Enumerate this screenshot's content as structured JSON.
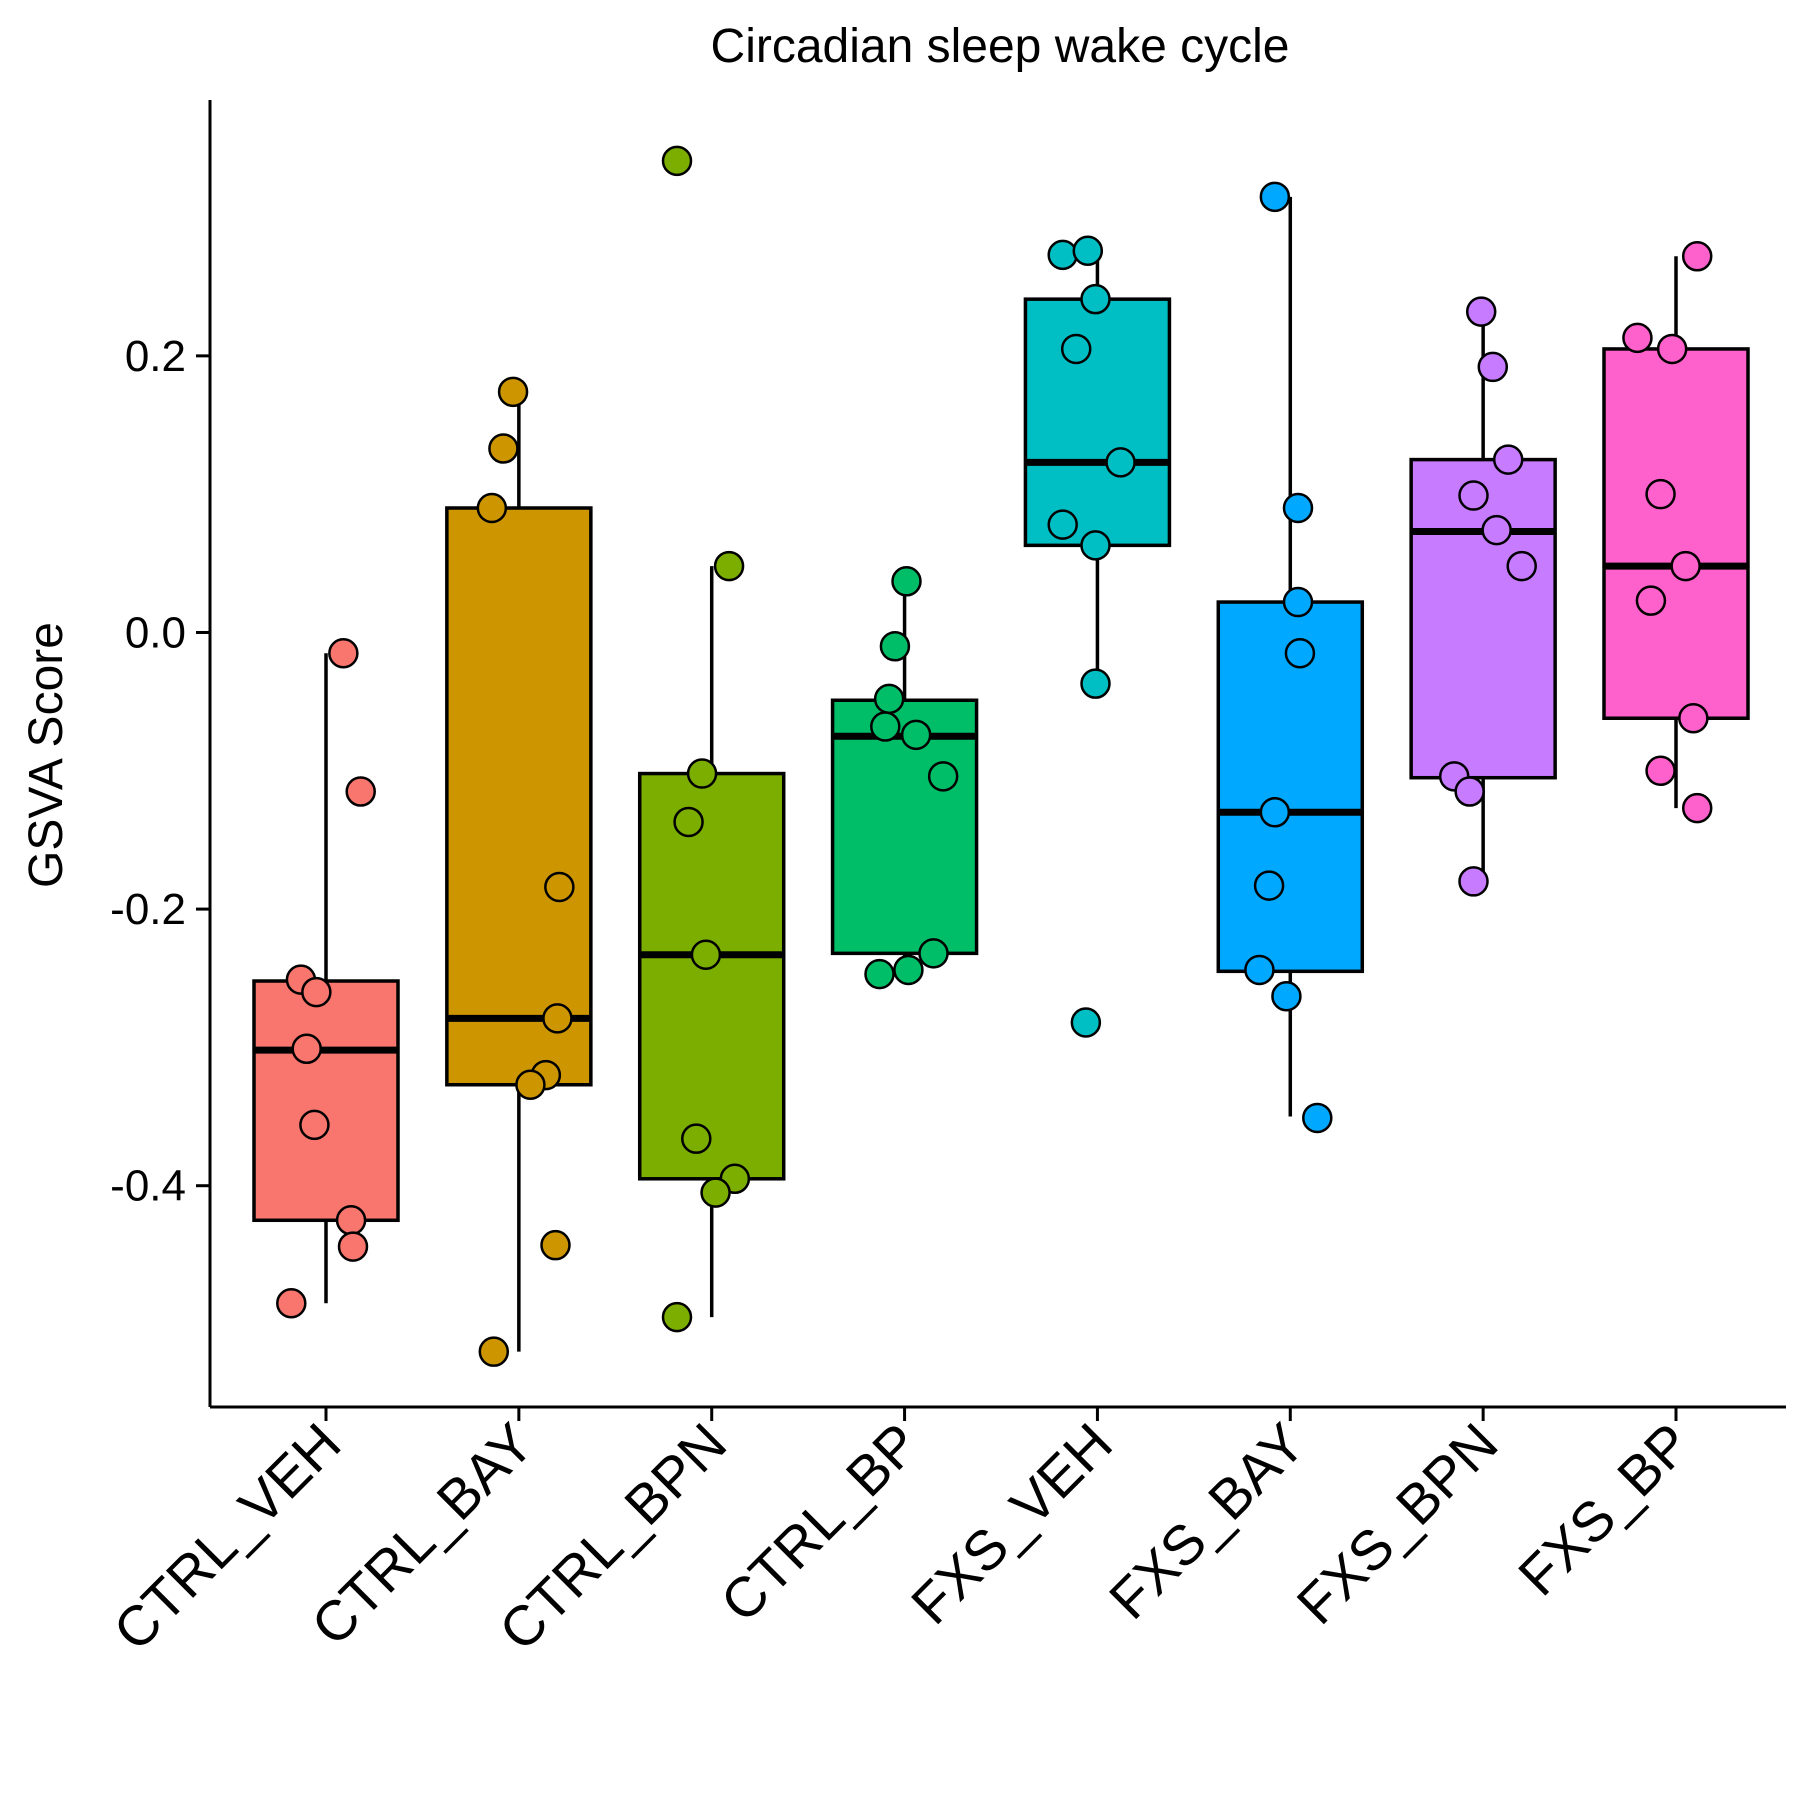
{
  "chart_data": {
    "type": "box",
    "title": "Circadian sleep wake cycle",
    "xlabel": "",
    "ylabel": "GSVA Score",
    "ylim": [
      -0.56,
      0.385
    ],
    "yticks": [
      -0.4,
      -0.2,
      0.0,
      0.2
    ],
    "ytick_labels": [
      "-0.4",
      "-0.2",
      "0.0",
      "0.2"
    ],
    "legend": "none",
    "grid": false,
    "categories": [
      "CTRL_VEH",
      "CTRL_BAY",
      "CTRL_BPN",
      "CTRL_BP",
      "FXS_VEH",
      "FXS_BAY",
      "FXS_BPN",
      "FXS_BP"
    ],
    "groups": [
      {
        "name": "CTRL_VEH",
        "color": "#F8766D",
        "box": {
          "lower_whisker": -0.485,
          "q1": -0.425,
          "median": -0.302,
          "q3": -0.252,
          "upper_whisker": -0.015
        },
        "points": [
          {
            "x_jitter": 0.09,
            "y": -0.015
          },
          {
            "x_jitter": 0.18,
            "y": -0.115
          },
          {
            "x_jitter": -0.13,
            "y": -0.251
          },
          {
            "x_jitter": -0.05,
            "y": -0.26
          },
          {
            "x_jitter": -0.1,
            "y": -0.301
          },
          {
            "x_jitter": -0.06,
            "y": -0.356
          },
          {
            "x_jitter": 0.13,
            "y": -0.425
          },
          {
            "x_jitter": 0.14,
            "y": -0.444
          },
          {
            "x_jitter": -0.18,
            "y": -0.485
          }
        ]
      },
      {
        "name": "CTRL_BAY",
        "color": "#CD9600",
        "box": {
          "lower_whisker": -0.52,
          "q1": -0.327,
          "median": -0.279,
          "q3": 0.09,
          "upper_whisker": 0.174
        },
        "points": [
          {
            "x_jitter": -0.03,
            "y": 0.174
          },
          {
            "x_jitter": -0.08,
            "y": 0.133
          },
          {
            "x_jitter": -0.14,
            "y": 0.09
          },
          {
            "x_jitter": 0.21,
            "y": -0.184
          },
          {
            "x_jitter": 0.2,
            "y": -0.279
          },
          {
            "x_jitter": 0.14,
            "y": -0.32
          },
          {
            "x_jitter": 0.06,
            "y": -0.327
          },
          {
            "x_jitter": 0.19,
            "y": -0.443
          },
          {
            "x_jitter": -0.13,
            "y": -0.52
          }
        ]
      },
      {
        "name": "CTRL_BPN",
        "color": "#7CAE00",
        "box": {
          "lower_whisker": -0.495,
          "q1": -0.395,
          "median": -0.233,
          "q3": -0.102,
          "upper_whisker": 0.048
        },
        "points": [
          {
            "x_jitter": -0.18,
            "y": 0.341
          },
          {
            "x_jitter": 0.09,
            "y": 0.048
          },
          {
            "x_jitter": -0.05,
            "y": -0.102
          },
          {
            "x_jitter": -0.12,
            "y": -0.137
          },
          {
            "x_jitter": -0.03,
            "y": -0.233
          },
          {
            "x_jitter": -0.08,
            "y": -0.366
          },
          {
            "x_jitter": 0.12,
            "y": -0.395
          },
          {
            "x_jitter": 0.02,
            "y": -0.405
          },
          {
            "x_jitter": -0.18,
            "y": -0.495
          }
        ]
      },
      {
        "name": "CTRL_BP",
        "color": "#00BE67",
        "box": {
          "lower_whisker": -0.248,
          "q1": -0.232,
          "median": -0.075,
          "q3": -0.049,
          "upper_whisker": 0.037
        },
        "points": [
          {
            "x_jitter": 0.01,
            "y": 0.037
          },
          {
            "x_jitter": -0.05,
            "y": -0.01
          },
          {
            "x_jitter": -0.08,
            "y": -0.048
          },
          {
            "x_jitter": -0.1,
            "y": -0.068
          },
          {
            "x_jitter": 0.06,
            "y": -0.074
          },
          {
            "x_jitter": 0.2,
            "y": -0.104
          },
          {
            "x_jitter": 0.15,
            "y": -0.232
          },
          {
            "x_jitter": 0.02,
            "y": -0.244
          },
          {
            "x_jitter": -0.13,
            "y": -0.247
          }
        ]
      },
      {
        "name": "FXS_VEH",
        "color": "#00BFC4",
        "box": {
          "lower_whisker": -0.037,
          "q1": 0.063,
          "median": 0.123,
          "q3": 0.241,
          "upper_whisker": 0.277
        },
        "points": [
          {
            "x_jitter": -0.18,
            "y": 0.273
          },
          {
            "x_jitter": -0.05,
            "y": 0.276
          },
          {
            "x_jitter": -0.01,
            "y": 0.241
          },
          {
            "x_jitter": -0.11,
            "y": 0.205
          },
          {
            "x_jitter": 0.12,
            "y": 0.123
          },
          {
            "x_jitter": -0.18,
            "y": 0.078
          },
          {
            "x_jitter": -0.01,
            "y": 0.063
          },
          {
            "x_jitter": -0.01,
            "y": -0.037
          },
          {
            "x_jitter": -0.06,
            "y": -0.282
          }
        ]
      },
      {
        "name": "FXS_BAY",
        "color": "#00A9FF",
        "box": {
          "lower_whisker": -0.35,
          "q1": -0.245,
          "median": -0.13,
          "q3": 0.022,
          "upper_whisker": 0.315
        },
        "points": [
          {
            "x_jitter": -0.08,
            "y": 0.315
          },
          {
            "x_jitter": 0.04,
            "y": 0.09
          },
          {
            "x_jitter": 0.04,
            "y": 0.022
          },
          {
            "x_jitter": 0.05,
            "y": -0.015
          },
          {
            "x_jitter": -0.08,
            "y": -0.13
          },
          {
            "x_jitter": -0.11,
            "y": -0.183
          },
          {
            "x_jitter": -0.16,
            "y": -0.244
          },
          {
            "x_jitter": -0.02,
            "y": -0.263
          },
          {
            "x_jitter": 0.14,
            "y": -0.351
          }
        ]
      },
      {
        "name": "FXS_BPN",
        "color": "#C77CFF",
        "box": {
          "lower_whisker": -0.18,
          "q1": -0.105,
          "median": 0.073,
          "q3": 0.125,
          "upper_whisker": 0.232
        },
        "points": [
          {
            "x_jitter": -0.01,
            "y": 0.232
          },
          {
            "x_jitter": 0.05,
            "y": 0.192
          },
          {
            "x_jitter": 0.13,
            "y": 0.125
          },
          {
            "x_jitter": -0.05,
            "y": 0.099
          },
          {
            "x_jitter": 0.07,
            "y": 0.074
          },
          {
            "x_jitter": 0.2,
            "y": 0.048
          },
          {
            "x_jitter": -0.15,
            "y": -0.104
          },
          {
            "x_jitter": -0.07,
            "y": -0.115
          },
          {
            "x_jitter": -0.05,
            "y": -0.18
          }
        ]
      },
      {
        "name": "FXS_BP",
        "color": "#FF61CC",
        "box": {
          "lower_whisker": -0.127,
          "q1": -0.062,
          "median": 0.048,
          "q3": 0.205,
          "upper_whisker": 0.272
        },
        "points": [
          {
            "x_jitter": 0.11,
            "y": 0.272
          },
          {
            "x_jitter": -0.2,
            "y": 0.213
          },
          {
            "x_jitter": -0.02,
            "y": 0.205
          },
          {
            "x_jitter": -0.08,
            "y": 0.1
          },
          {
            "x_jitter": 0.05,
            "y": 0.048
          },
          {
            "x_jitter": -0.13,
            "y": 0.023
          },
          {
            "x_jitter": 0.09,
            "y": -0.062
          },
          {
            "x_jitter": -0.08,
            "y": -0.1
          },
          {
            "x_jitter": 0.11,
            "y": -0.127
          }
        ]
      }
    ]
  }
}
